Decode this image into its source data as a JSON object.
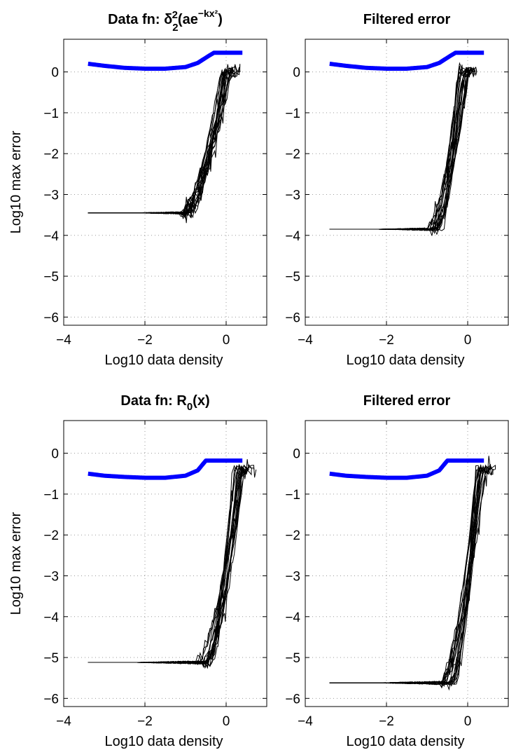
{
  "figure": {
    "ylabel": "Log10 max error",
    "xlabel": "Log10 data density"
  },
  "colors": {
    "reference_curve": "#0000ff",
    "trials": "#000000",
    "grid": "#9a9a9a"
  },
  "chart_data": [
    {
      "type": "line",
      "title": "Data fn: δ₂²(ae^(−kx²))",
      "xlabel": "Log10 data density",
      "ylabel": "Log10 max error",
      "xlim": [
        -4,
        1
      ],
      "ylim": [
        -6.2,
        0.8
      ],
      "xticks": [
        "−4",
        "−2",
        "0"
      ],
      "yticks": [
        "0",
        "−1",
        "−2",
        "−3",
        "−4",
        "−5",
        "−6"
      ],
      "grid": "on (dotted)",
      "series": [
        {
          "role": "reference (blue)",
          "x": [
            -3.4,
            -3.0,
            -2.5,
            -2.0,
            -1.5,
            -1.0,
            -0.7,
            -0.45,
            -0.3,
            0.4
          ],
          "values": [
            0.2,
            0.15,
            0.1,
            0.08,
            0.08,
            0.12,
            0.22,
            0.38,
            0.47,
            0.47
          ]
        },
        {
          "role": "trials (black, ~20 runs)",
          "baseline": -3.45,
          "x_rise_start": -1.0,
          "x_rise_end": 0.0,
          "ymax": 0.0
        }
      ]
    },
    {
      "type": "line",
      "title": "Filtered error",
      "xlabel": "Log10 data density",
      "ylabel": "",
      "xlim": [
        -4,
        1
      ],
      "ylim": [
        -6.2,
        0.8
      ],
      "xticks": [
        "−4",
        "−2",
        "0"
      ],
      "yticks": [
        "0",
        "−1",
        "−2",
        "−3",
        "−4",
        "−5",
        "−6"
      ],
      "grid": "on (dotted)",
      "series": [
        {
          "role": "reference (blue)",
          "x": [
            -3.4,
            -3.0,
            -2.5,
            -2.0,
            -1.5,
            -1.0,
            -0.7,
            -0.45,
            -0.3,
            0.4
          ],
          "values": [
            0.2,
            0.15,
            0.1,
            0.08,
            0.08,
            0.12,
            0.22,
            0.38,
            0.47,
            0.47
          ]
        },
        {
          "role": "trials (black, ~20 runs)",
          "baseline": -3.85,
          "x_rise_start": -0.8,
          "x_rise_end": -0.1,
          "ymax": 0.0
        }
      ]
    },
    {
      "type": "line",
      "title": "Data fn: R₀(x)",
      "xlabel": "Log10 data density",
      "ylabel": "Log10 max error",
      "xlim": [
        -4,
        1
      ],
      "ylim": [
        -6.2,
        0.8
      ],
      "xticks": [
        "−4",
        "−2",
        "0"
      ],
      "yticks": [
        "0",
        "−1",
        "−2",
        "−3",
        "−4",
        "−5",
        "−6"
      ],
      "grid": "on (dotted)",
      "series": [
        {
          "role": "reference (blue)",
          "x": [
            -3.4,
            -3.0,
            -2.5,
            -2.0,
            -1.5,
            -1.0,
            -0.7,
            -0.5,
            0.4
          ],
          "values": [
            -0.5,
            -0.55,
            -0.58,
            -0.6,
            -0.6,
            -0.55,
            -0.42,
            -0.18,
            -0.18
          ]
        },
        {
          "role": "trials (black, ~20 runs)",
          "baseline": -5.12,
          "x_rise_start": -0.6,
          "x_rise_end": 0.3,
          "ymax": -0.4
        }
      ]
    },
    {
      "type": "line",
      "title": "Filtered error",
      "xlabel": "Log10 data density",
      "ylabel": "",
      "xlim": [
        -4,
        1
      ],
      "ylim": [
        -6.2,
        0.8
      ],
      "xticks": [
        "−4",
        "−2",
        "0"
      ],
      "yticks": [
        "0",
        "−1",
        "−2",
        "−3",
        "−4",
        "−5",
        "−6"
      ],
      "grid": "on (dotted)",
      "series": [
        {
          "role": "reference (blue)",
          "x": [
            -3.4,
            -3.0,
            -2.5,
            -2.0,
            -1.5,
            -1.0,
            -0.7,
            -0.5,
            0.4
          ],
          "values": [
            -0.5,
            -0.55,
            -0.58,
            -0.6,
            -0.6,
            -0.55,
            -0.42,
            -0.18,
            -0.18
          ]
        },
        {
          "role": "trials (black, ~20 runs)",
          "baseline": -5.62,
          "x_rise_start": -0.5,
          "x_rise_end": 0.3,
          "ymax": -0.4
        }
      ]
    }
  ]
}
